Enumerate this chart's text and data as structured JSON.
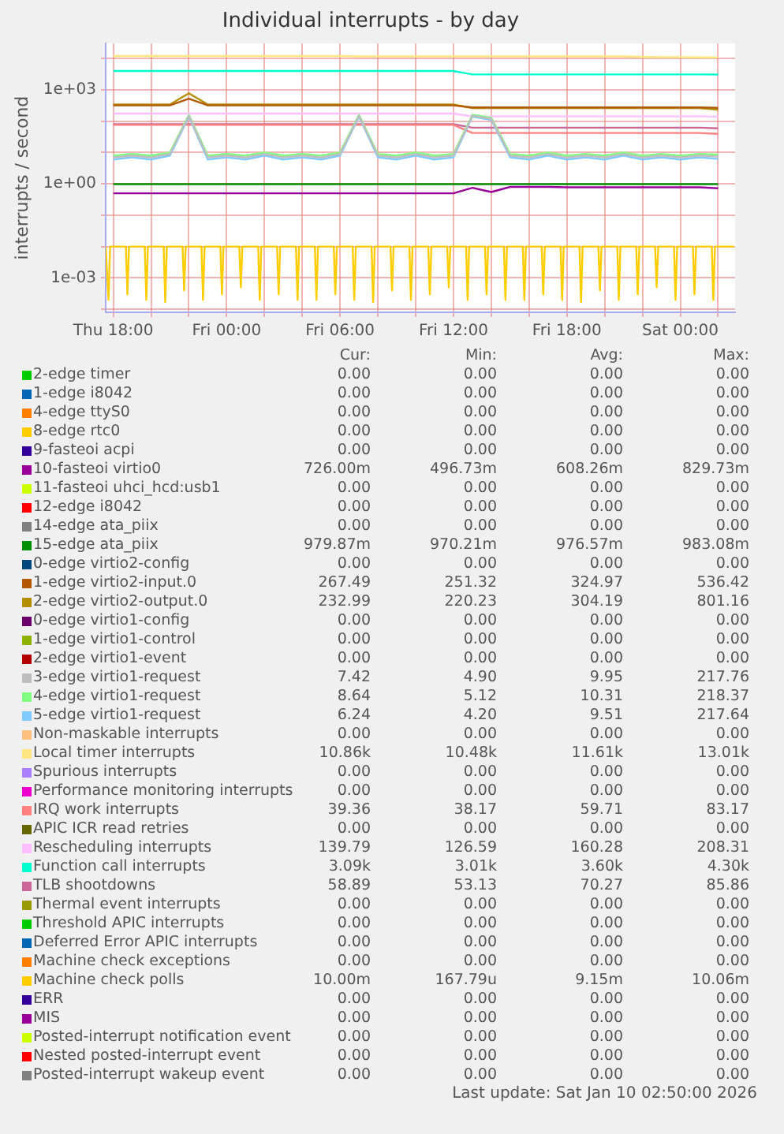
{
  "chart_data": {
    "type": "line",
    "title": "Individual interrupts - by day",
    "ylabel": "interrupts / second",
    "x": [
      "2026-01-08T18:00",
      "2026-01-08T19:00",
      "2026-01-08T20:00",
      "2026-01-08T21:00",
      "2026-01-08T22:00",
      "2026-01-08T23:00",
      "2026-01-09T00:00",
      "2026-01-09T01:00",
      "2026-01-09T02:00",
      "2026-01-09T03:00",
      "2026-01-09T04:00",
      "2026-01-09T05:00",
      "2026-01-09T06:00",
      "2026-01-09T07:00",
      "2026-01-09T08:00",
      "2026-01-09T09:00",
      "2026-01-09T10:00",
      "2026-01-09T11:00",
      "2026-01-09T12:00",
      "2026-01-09T13:00",
      "2026-01-09T14:00",
      "2026-01-09T15:00",
      "2026-01-09T16:00",
      "2026-01-09T17:00",
      "2026-01-09T18:00",
      "2026-01-09T19:00",
      "2026-01-09T20:00",
      "2026-01-09T21:00",
      "2026-01-09T22:00",
      "2026-01-09T23:00",
      "2026-01-10T00:00",
      "2026-01-10T01:00",
      "2026-01-10T02:00"
    ],
    "xlim": [
      "2026-01-08T17:36",
      "2026-01-10T02:54"
    ],
    "xticks": [
      {
        "value": "2026-01-08T18:00",
        "label": "Thu 18:00"
      },
      {
        "value": "2026-01-08T20:00",
        "label": null
      },
      {
        "value": "2026-01-08T22:00",
        "label": null
      },
      {
        "value": "2026-01-09T00:00",
        "label": "Fri 00:00"
      },
      {
        "value": "2026-01-09T02:00",
        "label": null
      },
      {
        "value": "2026-01-09T04:00",
        "label": null
      },
      {
        "value": "2026-01-09T06:00",
        "label": "Fri 06:00"
      },
      {
        "value": "2026-01-09T08:00",
        "label": null
      },
      {
        "value": "2026-01-09T10:00",
        "label": null
      },
      {
        "value": "2026-01-09T12:00",
        "label": "Fri 12:00"
      },
      {
        "value": "2026-01-09T14:00",
        "label": null
      },
      {
        "value": "2026-01-09T16:00",
        "label": null
      },
      {
        "value": "2026-01-09T18:00",
        "label": "Fri 18:00"
      },
      {
        "value": "2026-01-09T20:00",
        "label": null
      },
      {
        "value": "2026-01-09T22:00",
        "label": null
      },
      {
        "value": "2026-01-10T00:00",
        "label": "Sat 00:00"
      },
      {
        "value": "2026-01-10T02:00",
        "label": null
      }
    ],
    "log": true,
    "ylim": [
      8e-05,
      30000
    ],
    "yticks": [
      {
        "value": 0.0001,
        "label": null
      },
      {
        "value": 0.001,
        "label": "1e-03"
      },
      {
        "value": 0.01,
        "label": null
      },
      {
        "value": 0.1,
        "label": null
      },
      {
        "value": 1,
        "label": "1e+00"
      },
      {
        "value": 10,
        "label": null
      },
      {
        "value": 100,
        "label": null
      },
      {
        "value": 1000,
        "label": "1e+03"
      },
      {
        "value": 10000,
        "label": null
      }
    ],
    "grid": true,
    "legend": "bottom",
    "marker": "none",
    "series": [
      {
        "name": "2-edge timer",
        "color": "#00cc00",
        "values": [
          null,
          null,
          null,
          null,
          null,
          null,
          null,
          null,
          null,
          null,
          null,
          null,
          null,
          null,
          null,
          null,
          null,
          null,
          null,
          null,
          null,
          null,
          null,
          null,
          null,
          null,
          null,
          null,
          null,
          null,
          null,
          null,
          null
        ]
      },
      {
        "name": "1-edge i8042",
        "color": "#0066b3",
        "values": [
          null,
          null,
          null,
          null,
          null,
          null,
          null,
          null,
          null,
          null,
          null,
          null,
          null,
          null,
          null,
          null,
          null,
          null,
          null,
          null,
          null,
          null,
          null,
          null,
          null,
          null,
          null,
          null,
          null,
          null,
          null,
          null,
          null
        ]
      },
      {
        "name": "4-edge ttyS0",
        "color": "#ff8000",
        "values": [
          null,
          null,
          null,
          null,
          null,
          null,
          null,
          null,
          null,
          null,
          null,
          null,
          null,
          null,
          null,
          null,
          null,
          null,
          null,
          null,
          null,
          null,
          null,
          null,
          null,
          null,
          null,
          null,
          null,
          null,
          null,
          null,
          null
        ]
      },
      {
        "name": "8-edge rtc0",
        "color": "#ffcc00",
        "values": [
          null,
          null,
          null,
          null,
          null,
          null,
          null,
          null,
          null,
          null,
          null,
          null,
          null,
          null,
          null,
          null,
          null,
          null,
          null,
          null,
          null,
          null,
          null,
          null,
          null,
          null,
          null,
          null,
          null,
          null,
          null,
          null,
          null
        ]
      },
      {
        "name": "9-fasteoi acpi",
        "color": "#330099",
        "values": [
          null,
          null,
          null,
          null,
          null,
          null,
          null,
          null,
          null,
          null,
          null,
          null,
          null,
          null,
          null,
          null,
          null,
          null,
          null,
          null,
          null,
          null,
          null,
          null,
          null,
          null,
          null,
          null,
          null,
          null,
          null,
          null,
          null
        ]
      },
      {
        "name": "10-fasteoi virtio0",
        "color": "#990099",
        "values": [
          0.5,
          0.5,
          0.5,
          0.5,
          0.5,
          0.5,
          0.5,
          0.5,
          0.5,
          0.5,
          0.5,
          0.5,
          0.5,
          0.5,
          0.5,
          0.5,
          0.5,
          0.5,
          0.5,
          0.75,
          0.55,
          0.8,
          0.8,
          0.8,
          0.78,
          0.78,
          0.78,
          0.78,
          0.78,
          0.78,
          0.78,
          0.78,
          0.726
        ]
      },
      {
        "name": "11-fasteoi uhci_hcd:usb1",
        "color": "#ccff00",
        "values": [
          null,
          null,
          null,
          null,
          null,
          null,
          null,
          null,
          null,
          null,
          null,
          null,
          null,
          null,
          null,
          null,
          null,
          null,
          null,
          null,
          null,
          null,
          null,
          null,
          null,
          null,
          null,
          null,
          null,
          null,
          null,
          null,
          null
        ]
      },
      {
        "name": "12-edge i8042",
        "color": "#ff0000",
        "values": [
          null,
          null,
          null,
          null,
          null,
          null,
          null,
          null,
          null,
          null,
          null,
          null,
          null,
          null,
          null,
          null,
          null,
          null,
          null,
          null,
          null,
          null,
          null,
          null,
          null,
          null,
          null,
          null,
          null,
          null,
          null,
          null,
          null
        ]
      },
      {
        "name": "14-edge ata_piix",
        "color": "#808080",
        "values": [
          null,
          null,
          null,
          null,
          null,
          null,
          null,
          null,
          null,
          null,
          null,
          null,
          null,
          null,
          null,
          null,
          null,
          null,
          null,
          null,
          null,
          null,
          null,
          null,
          null,
          null,
          null,
          null,
          null,
          null,
          null,
          null,
          null
        ]
      },
      {
        "name": "15-edge ata_piix",
        "color": "#008f00",
        "values": [
          0.98,
          0.98,
          0.98,
          0.98,
          0.98,
          0.98,
          0.98,
          0.98,
          0.98,
          0.98,
          0.98,
          0.98,
          0.98,
          0.98,
          0.98,
          0.98,
          0.98,
          0.98,
          0.98,
          0.98,
          0.98,
          0.98,
          0.98,
          0.98,
          0.98,
          0.98,
          0.98,
          0.98,
          0.98,
          0.98,
          0.98,
          0.98,
          0.97987
        ]
      },
      {
        "name": "0-edge virtio2-config",
        "color": "#00487d",
        "values": [
          null,
          null,
          null,
          null,
          null,
          null,
          null,
          null,
          null,
          null,
          null,
          null,
          null,
          null,
          null,
          null,
          null,
          null,
          null,
          null,
          null,
          null,
          null,
          null,
          null,
          null,
          null,
          null,
          null,
          null,
          null,
          null,
          null
        ]
      },
      {
        "name": "1-edge virtio2-input.0",
        "color": "#b35a00",
        "values": [
          320,
          320,
          320,
          320,
          520,
          320,
          320,
          320,
          320,
          320,
          320,
          320,
          320,
          320,
          320,
          320,
          320,
          320,
          320,
          275,
          275,
          275,
          275,
          275,
          275,
          275,
          275,
          275,
          275,
          275,
          275,
          275,
          267.49
        ]
      },
      {
        "name": "2-edge virtio2-output.0",
        "color": "#b38f00",
        "values": [
          340,
          340,
          340,
          340,
          780,
          340,
          340,
          340,
          340,
          340,
          340,
          340,
          340,
          340,
          340,
          340,
          340,
          340,
          340,
          260,
          260,
          260,
          260,
          260,
          260,
          260,
          260,
          260,
          260,
          260,
          260,
          260,
          232.99
        ]
      },
      {
        "name": "0-edge virtio1-config",
        "color": "#6b006b",
        "values": [
          null,
          null,
          null,
          null,
          null,
          null,
          null,
          null,
          null,
          null,
          null,
          null,
          null,
          null,
          null,
          null,
          null,
          null,
          null,
          null,
          null,
          null,
          null,
          null,
          null,
          null,
          null,
          null,
          null,
          null,
          null,
          null,
          null
        ]
      },
      {
        "name": "1-edge virtio1-control",
        "color": "#8fb300",
        "values": [
          null,
          null,
          null,
          null,
          null,
          null,
          null,
          null,
          null,
          null,
          null,
          null,
          null,
          null,
          null,
          null,
          null,
          null,
          null,
          null,
          null,
          null,
          null,
          null,
          null,
          null,
          null,
          null,
          null,
          null,
          null,
          null,
          null
        ]
      },
      {
        "name": "2-edge virtio1-event",
        "color": "#b30000",
        "values": [
          null,
          null,
          null,
          null,
          null,
          null,
          null,
          null,
          null,
          null,
          null,
          null,
          null,
          null,
          null,
          null,
          null,
          null,
          null,
          null,
          null,
          null,
          null,
          null,
          null,
          null,
          null,
          null,
          null,
          null,
          null,
          null,
          null
        ]
      },
      {
        "name": "3-edge virtio1-request",
        "color": "#bebebe",
        "values": [
          7,
          8,
          7,
          9,
          150,
          7,
          8,
          7,
          9,
          7,
          8,
          7,
          9,
          150,
          8,
          7,
          9,
          7,
          8,
          150,
          120,
          8,
          7,
          9,
          7,
          8,
          7,
          9,
          7,
          8,
          7,
          8,
          7.42
        ]
      },
      {
        "name": "4-edge virtio1-request",
        "color": "#80ff80",
        "values": [
          8,
          9,
          8,
          10,
          160,
          8,
          9,
          8,
          10,
          8,
          9,
          8,
          10,
          160,
          9,
          8,
          10,
          8,
          9,
          160,
          130,
          9,
          8,
          10,
          8,
          9,
          8,
          10,
          8,
          9,
          8,
          9,
          8.64
        ]
      },
      {
        "name": "5-edge virtio1-request",
        "color": "#80c9ff",
        "values": [
          6,
          7,
          6,
          8,
          140,
          6,
          7,
          6,
          8,
          6,
          7,
          6,
          8,
          140,
          7,
          6,
          8,
          6,
          7,
          140,
          110,
          7,
          6,
          8,
          6,
          7,
          6,
          8,
          6,
          7,
          6,
          7,
          6.24
        ]
      },
      {
        "name": "Non-maskable interrupts",
        "color": "#ffc080",
        "values": [
          null,
          null,
          null,
          null,
          null,
          null,
          null,
          null,
          null,
          null,
          null,
          null,
          null,
          null,
          null,
          null,
          null,
          null,
          null,
          null,
          null,
          null,
          null,
          null,
          null,
          null,
          null,
          null,
          null,
          null,
          null,
          null,
          null
        ]
      },
      {
        "name": "Local timer interrupts",
        "color": "#ffe680",
        "values": [
          12000,
          12000,
          12000,
          12000,
          12000,
          12000,
          12000,
          12000,
          12000,
          12000,
          12000,
          12000,
          12000,
          11700,
          11700,
          11700,
          11700,
          11700,
          11700,
          11700,
          11700,
          11700,
          11700,
          11700,
          11700,
          11700,
          11700,
          11700,
          11200,
          11000,
          11000,
          10900,
          10860
        ]
      },
      {
        "name": "Spurious interrupts",
        "color": "#aa80ff",
        "values": [
          null,
          null,
          null,
          null,
          null,
          null,
          null,
          null,
          null,
          null,
          null,
          null,
          null,
          null,
          null,
          null,
          null,
          null,
          null,
          null,
          null,
          null,
          null,
          null,
          null,
          null,
          null,
          null,
          null,
          null,
          null,
          null,
          null
        ]
      },
      {
        "name": "Performance monitoring interrupts",
        "color": "#ee00cc",
        "values": [
          null,
          null,
          null,
          null,
          null,
          null,
          null,
          null,
          null,
          null,
          null,
          null,
          null,
          null,
          null,
          null,
          null,
          null,
          null,
          null,
          null,
          null,
          null,
          null,
          null,
          null,
          null,
          null,
          null,
          null,
          null,
          null,
          null
        ]
      },
      {
        "name": "IRQ work interrupts",
        "color": "#ff8080",
        "values": [
          76,
          76,
          76,
          76,
          76,
          76,
          76,
          76,
          76,
          76,
          76,
          76,
          76,
          76,
          76,
          76,
          76,
          76,
          76,
          42,
          42,
          42,
          42,
          42,
          42,
          42,
          42,
          42,
          42,
          42,
          42,
          42,
          39.36
        ]
      },
      {
        "name": "APIC ICR read retries",
        "color": "#666600",
        "values": [
          null,
          null,
          null,
          null,
          null,
          null,
          null,
          null,
          null,
          null,
          null,
          null,
          null,
          null,
          null,
          null,
          null,
          null,
          null,
          null,
          null,
          null,
          null,
          null,
          null,
          null,
          null,
          null,
          null,
          null,
          null,
          null,
          null
        ]
      },
      {
        "name": "Rescheduling interrupts",
        "color": "#ffbfff",
        "values": [
          175,
          175,
          175,
          175,
          175,
          175,
          175,
          175,
          175,
          175,
          175,
          175,
          175,
          175,
          175,
          175,
          175,
          175,
          175,
          142,
          142,
          142,
          142,
          142,
          142,
          142,
          142,
          142,
          142,
          142,
          142,
          142,
          139.79
        ]
      },
      {
        "name": "Function call interrupts",
        "color": "#00ffcc",
        "values": [
          4000,
          4000,
          4000,
          4000,
          4000,
          4000,
          4000,
          4000,
          4000,
          4000,
          4000,
          4000,
          4000,
          4000,
          4000,
          4000,
          4000,
          4000,
          4000,
          3100,
          3100,
          3100,
          3100,
          3100,
          3100,
          3100,
          3100,
          3100,
          3100,
          3100,
          3100,
          3100,
          3090
        ]
      },
      {
        "name": "TLB shootdowns",
        "color": "#cc6699",
        "values": [
          80,
          80,
          80,
          80,
          80,
          80,
          80,
          80,
          80,
          80,
          80,
          80,
          80,
          80,
          80,
          80,
          80,
          80,
          80,
          62,
          62,
          62,
          62,
          62,
          62,
          62,
          62,
          62,
          62,
          62,
          62,
          62,
          58.89
        ]
      },
      {
        "name": "Thermal event interrupts",
        "color": "#999900",
        "values": [
          null,
          null,
          null,
          null,
          null,
          null,
          null,
          null,
          null,
          null,
          null,
          null,
          null,
          null,
          null,
          null,
          null,
          null,
          null,
          null,
          null,
          null,
          null,
          null,
          null,
          null,
          null,
          null,
          null,
          null,
          null,
          null,
          null
        ]
      },
      {
        "name": "Threshold APIC interrupts",
        "color": "#00cc00",
        "values": [
          null,
          null,
          null,
          null,
          null,
          null,
          null,
          null,
          null,
          null,
          null,
          null,
          null,
          null,
          null,
          null,
          null,
          null,
          null,
          null,
          null,
          null,
          null,
          null,
          null,
          null,
          null,
          null,
          null,
          null,
          null,
          null,
          null
        ]
      },
      {
        "name": "Deferred Error APIC interrupts",
        "color": "#0066b3",
        "values": [
          null,
          null,
          null,
          null,
          null,
          null,
          null,
          null,
          null,
          null,
          null,
          null,
          null,
          null,
          null,
          null,
          null,
          null,
          null,
          null,
          null,
          null,
          null,
          null,
          null,
          null,
          null,
          null,
          null,
          null,
          null,
          null,
          null
        ]
      },
      {
        "name": "Machine check exceptions",
        "color": "#ff8000",
        "values": [
          null,
          null,
          null,
          null,
          null,
          null,
          null,
          null,
          null,
          null,
          null,
          null,
          null,
          null,
          null,
          null,
          null,
          null,
          null,
          null,
          null,
          null,
          null,
          null,
          null,
          null,
          null,
          null,
          null,
          null,
          null,
          null,
          null
        ]
      },
      {
        "name": "Machine check polls",
        "color": "#ffcc00",
        "x": [
          "2026-01-08T17:36",
          "2026-01-08T17:40",
          "2026-01-08T17:45",
          "2026-01-08T17:50",
          "2026-01-08T18:40",
          "2026-01-08T18:45",
          "2026-01-08T18:50",
          "2026-01-08T19:40",
          "2026-01-08T19:45",
          "2026-01-08T19:50",
          "2026-01-08T20:40",
          "2026-01-08T20:45",
          "2026-01-08T20:50",
          "2026-01-08T21:40",
          "2026-01-08T21:45",
          "2026-01-08T21:50",
          "2026-01-08T22:40",
          "2026-01-08T22:45",
          "2026-01-08T22:50",
          "2026-01-08T23:40",
          "2026-01-08T23:45",
          "2026-01-08T23:50",
          "2026-01-09T00:40",
          "2026-01-09T00:45",
          "2026-01-09T00:50",
          "2026-01-09T01:40",
          "2026-01-09T01:45",
          "2026-01-09T01:50",
          "2026-01-09T02:40",
          "2026-01-09T02:45",
          "2026-01-09T02:50",
          "2026-01-09T03:40",
          "2026-01-09T03:45",
          "2026-01-09T03:50",
          "2026-01-09T04:40",
          "2026-01-09T04:45",
          "2026-01-09T04:50",
          "2026-01-09T05:40",
          "2026-01-09T05:45",
          "2026-01-09T05:50",
          "2026-01-09T06:40",
          "2026-01-09T06:45",
          "2026-01-09T06:50",
          "2026-01-09T07:40",
          "2026-01-09T07:45",
          "2026-01-09T07:50",
          "2026-01-09T08:40",
          "2026-01-09T08:45",
          "2026-01-09T08:50",
          "2026-01-09T09:40",
          "2026-01-09T09:45",
          "2026-01-09T09:50",
          "2026-01-09T10:40",
          "2026-01-09T10:45",
          "2026-01-09T10:50",
          "2026-01-09T11:40",
          "2026-01-09T11:45",
          "2026-01-09T11:50",
          "2026-01-09T12:40",
          "2026-01-09T12:45",
          "2026-01-09T12:50",
          "2026-01-09T13:40",
          "2026-01-09T13:45",
          "2026-01-09T13:50",
          "2026-01-09T14:40",
          "2026-01-09T14:45",
          "2026-01-09T14:50",
          "2026-01-09T15:40",
          "2026-01-09T15:45",
          "2026-01-09T15:50",
          "2026-01-09T16:40",
          "2026-01-09T16:45",
          "2026-01-09T16:50",
          "2026-01-09T17:40",
          "2026-01-09T17:45",
          "2026-01-09T17:50",
          "2026-01-09T18:40",
          "2026-01-09T18:45",
          "2026-01-09T18:50",
          "2026-01-09T19:40",
          "2026-01-09T19:45",
          "2026-01-09T19:50",
          "2026-01-09T20:40",
          "2026-01-09T20:45",
          "2026-01-09T20:50",
          "2026-01-09T21:40",
          "2026-01-09T21:45",
          "2026-01-09T21:50",
          "2026-01-09T22:40",
          "2026-01-09T22:45",
          "2026-01-09T22:50",
          "2026-01-09T23:40",
          "2026-01-09T23:45",
          "2026-01-09T23:50",
          "2026-01-10T00:40",
          "2026-01-10T00:45",
          "2026-01-10T00:50",
          "2026-01-10T01:40",
          "2026-01-10T01:45",
          "2026-01-10T01:50",
          "2026-01-10T02:51"
        ],
        "values": [
          0.01,
          0.01,
          0.0002,
          0.01,
          0.01,
          0.0003,
          0.01,
          0.01,
          0.0002,
          0.01,
          0.01,
          0.00017,
          0.01,
          0.01,
          0.0004,
          0.01,
          0.01,
          0.0002,
          0.01,
          0.01,
          0.0003,
          0.01,
          0.01,
          0.0005,
          0.01,
          0.01,
          0.0002,
          0.01,
          0.01,
          0.0003,
          0.01,
          0.01,
          0.0002,
          0.01,
          0.01,
          0.0002,
          0.01,
          0.01,
          0.0003,
          0.01,
          0.01,
          0.0002,
          0.01,
          0.01,
          0.00017,
          0.01,
          0.01,
          0.0004,
          0.01,
          0.01,
          0.0002,
          0.01,
          0.01,
          0.0003,
          0.01,
          0.01,
          0.0005,
          0.01,
          0.01,
          0.0002,
          0.01,
          0.01,
          0.0003,
          0.01,
          0.01,
          0.0002,
          0.01,
          0.01,
          0.0002,
          0.01,
          0.01,
          0.0003,
          0.01,
          0.01,
          0.0002,
          0.01,
          0.01,
          0.00017,
          0.01,
          0.01,
          0.0004,
          0.01,
          0.01,
          0.0002,
          0.01,
          0.01,
          0.0003,
          0.01,
          0.01,
          0.0005,
          0.01,
          0.01,
          0.0002,
          0.01,
          0.01,
          0.0003,
          0.01,
          0.01,
          0.0002,
          0.01,
          0.01
        ]
      },
      {
        "name": "ERR",
        "color": "#330099",
        "values": [
          null,
          null,
          null,
          null,
          null,
          null,
          null,
          null,
          null,
          null,
          null,
          null,
          null,
          null,
          null,
          null,
          null,
          null,
          null,
          null,
          null,
          null,
          null,
          null,
          null,
          null,
          null,
          null,
          null,
          null,
          null,
          null,
          null
        ]
      },
      {
        "name": "MIS",
        "color": "#990099",
        "values": [
          null,
          null,
          null,
          null,
          null,
          null,
          null,
          null,
          null,
          null,
          null,
          null,
          null,
          null,
          null,
          null,
          null,
          null,
          null,
          null,
          null,
          null,
          null,
          null,
          null,
          null,
          null,
          null,
          null,
          null,
          null,
          null,
          null
        ]
      },
      {
        "name": "Posted-interrupt notification event",
        "color": "#ccff00",
        "values": [
          null,
          null,
          null,
          null,
          null,
          null,
          null,
          null,
          null,
          null,
          null,
          null,
          null,
          null,
          null,
          null,
          null,
          null,
          null,
          null,
          null,
          null,
          null,
          null,
          null,
          null,
          null,
          null,
          null,
          null,
          null,
          null,
          null
        ]
      },
      {
        "name": "Nested posted-interrupt event",
        "color": "#ff0000",
        "values": [
          null,
          null,
          null,
          null,
          null,
          null,
          null,
          null,
          null,
          null,
          null,
          null,
          null,
          null,
          null,
          null,
          null,
          null,
          null,
          null,
          null,
          null,
          null,
          null,
          null,
          null,
          null,
          null,
          null,
          null,
          null,
          null,
          null
        ]
      },
      {
        "name": "Posted-interrupt wakeup event",
        "color": "#808080",
        "values": [
          null,
          null,
          null,
          null,
          null,
          null,
          null,
          null,
          null,
          null,
          null,
          null,
          null,
          null,
          null,
          null,
          null,
          null,
          null,
          null,
          null,
          null,
          null,
          null,
          null,
          null,
          null,
          null,
          null,
          null,
          null,
          null,
          null
        ]
      }
    ],
    "annotations": [
      "Cur:",
      "Min:",
      "Avg:",
      "Max:",
      "0.00",
      "0.00",
      "0.00",
      "0.00",
      "0.00",
      "0.00",
      "0.00",
      "0.00",
      "0.00",
      "0.00",
      "0.00",
      "0.00",
      "0.00",
      "0.00",
      "0.00",
      "0.00",
      "0.00",
      "0.00",
      "0.00",
      "0.00",
      "726.00m",
      "496.73m",
      "608.26m",
      "829.73m",
      "0.00",
      "0.00",
      "0.00",
      "0.00",
      "0.00",
      "0.00",
      "0.00",
      "0.00",
      "0.00",
      "0.00",
      "0.00",
      "0.00",
      "979.87m",
      "970.21m",
      "976.57m",
      "983.08m",
      "0.00",
      "0.00",
      "0.00",
      "0.00",
      "267.49",
      "251.32",
      "324.97",
      "536.42",
      "232.99",
      "220.23",
      "304.19",
      "801.16",
      "0.00",
      "0.00",
      "0.00",
      "0.00",
      "0.00",
      "0.00",
      "0.00",
      "0.00",
      "0.00",
      "0.00",
      "0.00",
      "0.00",
      "7.42",
      "4.90",
      "9.95",
      "217.76",
      "8.64",
      "5.12",
      "10.31",
      "218.37",
      "6.24",
      "4.20",
      "9.51",
      "217.64",
      "0.00",
      "0.00",
      "0.00",
      "0.00",
      "10.86k",
      "10.48k",
      "11.61k",
      "13.01k",
      "0.00",
      "0.00",
      "0.00",
      "0.00",
      "0.00",
      "0.00",
      "0.00",
      "0.00",
      "39.36",
      "38.17",
      "59.71",
      "83.17",
      "0.00",
      "0.00",
      "0.00",
      "0.00",
      "139.79",
      "126.59",
      "160.28",
      "208.31",
      "3.09k",
      "3.01k",
      "3.60k",
      "4.30k",
      "58.89",
      "53.13",
      "70.27",
      "85.86",
      "0.00",
      "0.00",
      "0.00",
      "0.00",
      "0.00",
      "0.00",
      "0.00",
      "0.00",
      "0.00",
      "0.00",
      "0.00",
      "0.00",
      "0.00",
      "0.00",
      "0.00",
      "0.00",
      "10.00m",
      "167.79u",
      "9.15m",
      "10.06m",
      "0.00",
      "0.00",
      "0.00",
      "0.00",
      "0.00",
      "0.00",
      "0.00",
      "0.00",
      "0.00",
      "0.00",
      "0.00",
      "0.00",
      "0.00",
      "0.00",
      "0.00",
      "0.00",
      "0.00",
      "0.00",
      "0.00",
      "0.00",
      "Last update: Sat Jan 10 02:50:00 2026"
    ]
  }
}
